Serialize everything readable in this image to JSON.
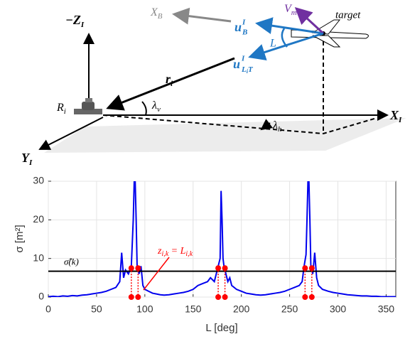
{
  "diagram": {
    "z_axis": {
      "sign": "−",
      "base": "Z",
      "sub": "I"
    },
    "x_axis": {
      "base": "X",
      "sub": "I"
    },
    "y_axis": {
      "base": "Y",
      "sub": "I"
    },
    "body_axis": {
      "base": "X",
      "sub": "B"
    },
    "u_b": {
      "base": "u",
      "sup": "I",
      "sub": "B"
    },
    "v_m": {
      "base": "V",
      "sub": "m"
    },
    "target": "target",
    "angle_l": "L",
    "u_lit": {
      "base": "u",
      "sup": "I",
      "sub": "L",
      "subsub": "i",
      "subtail": "T"
    },
    "r_i": {
      "base": "r",
      "sub": "i"
    },
    "radar": {
      "base": "R",
      "sub": "i"
    },
    "lambda_v": {
      "base": "λ",
      "sub": "v"
    },
    "lambda_h": {
      "base": "λ",
      "sub": "h"
    }
  },
  "chart_data": {
    "type": "line",
    "xlabel": "L [deg]",
    "ylabel": "σ [m²]",
    "xlim": [
      0,
      360
    ],
    "xticks": [
      0,
      50,
      100,
      150,
      200,
      250,
      300,
      350
    ],
    "ylim": [
      0,
      30
    ],
    "yticks": [
      0,
      10,
      20,
      30
    ],
    "grid": true,
    "series": [
      {
        "color": "#0000ee",
        "x": [
          0,
          5,
          10,
          15,
          20,
          25,
          30,
          35,
          40,
          45,
          50,
          55,
          60,
          65,
          70,
          74,
          76,
          78,
          80,
          83,
          86,
          88,
          89,
          90,
          91,
          92,
          94,
          96,
          98,
          100,
          104,
          108,
          112,
          116,
          120,
          125,
          130,
          135,
          140,
          145,
          150,
          155,
          160,
          165,
          168,
          172,
          174,
          176,
          178,
          179,
          180,
          181,
          182,
          184,
          186,
          188,
          190,
          195,
          200,
          205,
          210,
          215,
          220,
          225,
          230,
          235,
          240,
          245,
          250,
          255,
          260,
          263,
          265,
          267,
          268,
          269,
          270,
          271,
          272,
          274,
          276,
          278,
          280,
          284,
          290,
          295,
          300,
          305,
          310,
          315,
          320,
          325,
          330,
          335,
          340,
          345,
          350,
          355,
          360
        ],
        "values": [
          0.1,
          0.2,
          0.1,
          0.3,
          0.2,
          0.4,
          0.3,
          0.5,
          0.6,
          0.8,
          1.0,
          1.2,
          1.5,
          2.0,
          2.5,
          4,
          11.5,
          5,
          7,
          6,
          8,
          20,
          30,
          30,
          20,
          8,
          6,
          8,
          3,
          2,
          1.5,
          1,
          0.8,
          0.6,
          0.5,
          0.6,
          0.8,
          1,
          1.2,
          1.5,
          2,
          3,
          3.5,
          4,
          5,
          4,
          6,
          8,
          10,
          27.5,
          20,
          10,
          8,
          6,
          4,
          5,
          3,
          2,
          1.5,
          1,
          0.8,
          0.6,
          0.5,
          0.6,
          0.8,
          1,
          1.2,
          1.5,
          2,
          2.5,
          3,
          4,
          8,
          11,
          20,
          30,
          30,
          20,
          8,
          6,
          11.5,
          5,
          3,
          2,
          1.5,
          1.2,
          1,
          0.8,
          0.6,
          0.5,
          0.4,
          0.3,
          0.3,
          0.2,
          0.2,
          0.1,
          0.1,
          0.1,
          0.1
        ]
      }
    ],
    "reference_lines": [
      {
        "value": 6.7,
        "label": "σ̂(k)",
        "color": "#000000"
      }
    ],
    "crossings": {
      "color": "#ff0000",
      "x": [
        86,
        93,
        176,
        183,
        266,
        273
      ],
      "y_top": [
        7.5,
        7.5,
        7.5,
        7.5,
        7.5,
        7.5
      ],
      "y_bottom": [
        0,
        0,
        0,
        0,
        0,
        0
      ]
    },
    "annotation": {
      "text": "z",
      "sub": "i,k",
      "text2": " = L",
      "sub2": "i,k",
      "color": "#ff0000"
    }
  }
}
